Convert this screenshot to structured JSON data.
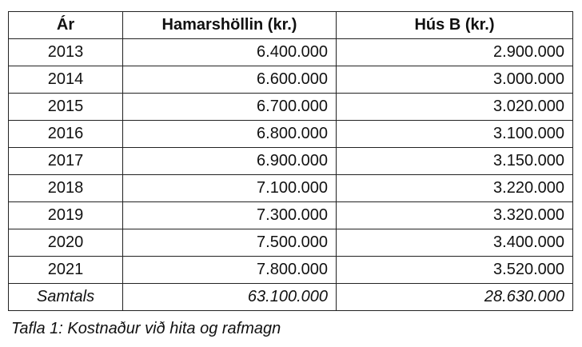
{
  "table": {
    "headers": [
      "Ár",
      "Hamarshöllin (kr.)",
      "Hús B (kr.)"
    ],
    "rows": [
      [
        "2013",
        "6.400.000",
        "2.900.000"
      ],
      [
        "2014",
        "6.600.000",
        "3.000.000"
      ],
      [
        "2015",
        "6.700.000",
        "3.020.000"
      ],
      [
        "2016",
        "6.800.000",
        "3.100.000"
      ],
      [
        "2017",
        "6.900.000",
        "3.150.000"
      ],
      [
        "2018",
        "7.100.000",
        "3.220.000"
      ],
      [
        "2019",
        "7.300.000",
        "3.320.000"
      ],
      [
        "2020",
        "7.500.000",
        "3.400.000"
      ],
      [
        "2021",
        "7.800.000",
        "3.520.000"
      ]
    ],
    "total": [
      "Samtals",
      "63.100.000",
      "28.630.000"
    ]
  },
  "caption": "Tafla 1: Kostnaður við hita og rafmagn"
}
